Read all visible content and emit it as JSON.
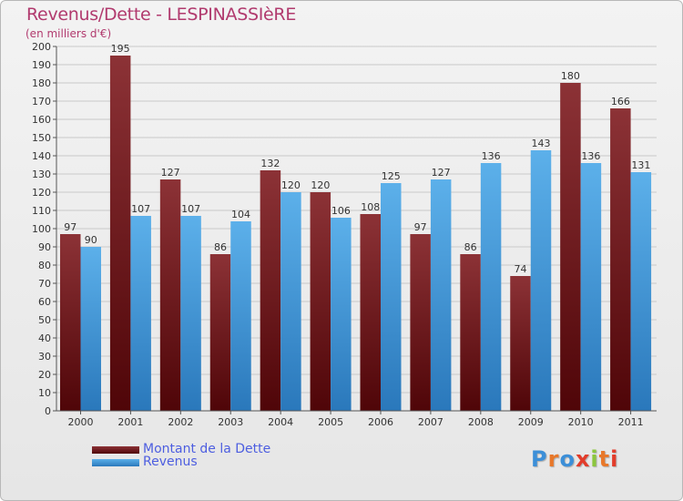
{
  "header": {
    "title": "Revenus/Dette - LESPINASSIèRE",
    "subtitle": "(en milliers d'€)"
  },
  "legend": {
    "items": [
      {
        "label": "Montant de la Dette",
        "color": "#7a1f24"
      },
      {
        "label": "Revenus",
        "color": "#4da2e0"
      }
    ]
  },
  "logo": {
    "text": "Proxiti"
  },
  "chart_data": {
    "type": "bar",
    "categories": [
      "2000",
      "2001",
      "2002",
      "2003",
      "2004",
      "2005",
      "2006",
      "2007",
      "2008",
      "2009",
      "2010",
      "2011"
    ],
    "series": [
      {
        "name": "Montant de la Dette",
        "color": "#7a1f24",
        "values": [
          97,
          195,
          127,
          86,
          132,
          120,
          108,
          97,
          86,
          74,
          180,
          166
        ]
      },
      {
        "name": "Revenus",
        "color": "#4da2e0",
        "values": [
          90,
          107,
          107,
          104,
          120,
          106,
          125,
          127,
          136,
          143,
          136,
          131
        ]
      }
    ],
    "title": "Revenus/Dette - LESPINASSIèRE",
    "ylabel": "(en milliers d'€)",
    "ylim": [
      0,
      200
    ],
    "ytick_step": 10,
    "grid": true,
    "legend_position": "bottom-left"
  }
}
